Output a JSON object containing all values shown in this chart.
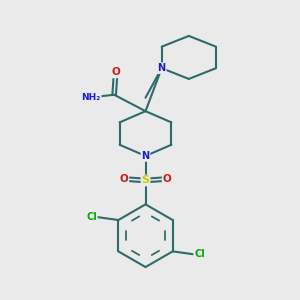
{
  "background_color": "#eaeaea",
  "bond_color": "#2d6b6b",
  "bond_width": 1.5,
  "atom_colors": {
    "N": "#1a1acc",
    "O": "#cc1a1a",
    "S": "#cccc00",
    "Cl": "#00aa00",
    "C": "#2d6b6b",
    "H": "#666666"
  },
  "figsize": [
    3.0,
    3.0
  ],
  "dpi": 100,
  "xlim": [
    0,
    10
  ],
  "ylim": [
    0,
    10
  ]
}
